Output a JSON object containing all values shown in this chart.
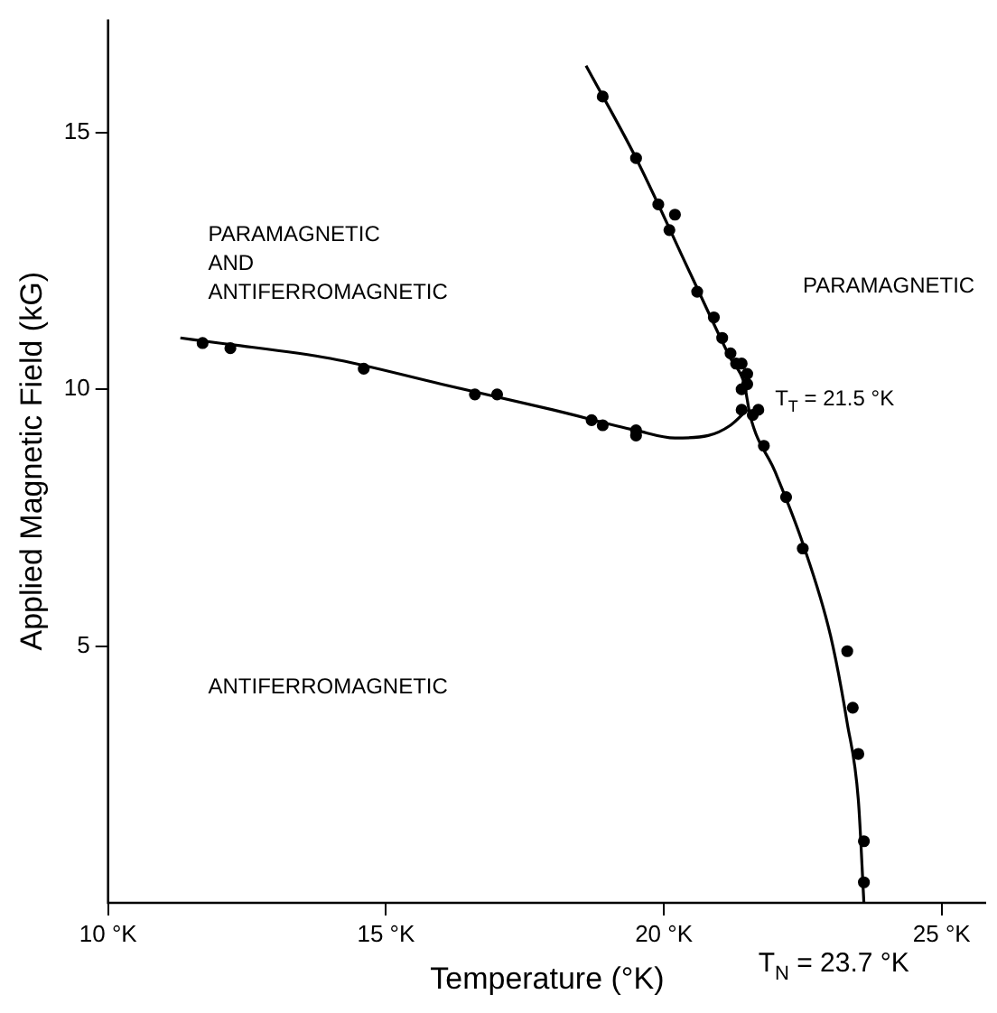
{
  "chart_data": {
    "type": "scatter",
    "xlabel": "Temperature (°K)",
    "ylabel": "Applied Magnetic Field (kG)",
    "xlim": [
      10,
      25.8
    ],
    "ylim": [
      0,
      17.2
    ],
    "xticks": [
      {
        "value": 10,
        "label": "10 °K"
      },
      {
        "value": 15,
        "label": "15 °K"
      },
      {
        "value": 20,
        "label": "20 °K"
      },
      {
        "value": 25,
        "label": "25 °K"
      }
    ],
    "yticks": [
      5,
      10,
      15
    ],
    "grid": false,
    "legend": false,
    "series": [
      {
        "type": "scatter",
        "color": "#000000",
        "marker": "circle",
        "x": [
          11.7,
          12.2,
          14.6,
          16.6,
          17.0,
          18.7,
          18.9,
          19.5,
          19.5,
          18.9,
          19.5,
          19.9,
          20.2,
          20.1,
          20.6,
          20.9,
          21.05,
          21.2,
          21.3,
          21.4,
          21.5,
          21.5,
          21.4,
          21.4,
          21.6,
          21.7,
          21.8,
          22.2,
          22.5,
          23.3,
          23.4,
          23.5,
          23.6,
          23.6
        ],
        "values": [
          10.9,
          10.8,
          10.4,
          9.9,
          9.9,
          9.4,
          9.3,
          9.2,
          9.1,
          15.7,
          14.5,
          13.6,
          13.4,
          13.1,
          11.9,
          11.4,
          11.0,
          10.7,
          10.5,
          10.5,
          10.3,
          10.1,
          10.0,
          9.6,
          9.5,
          9.6,
          8.9,
          7.9,
          6.9,
          4.9,
          3.8,
          2.9,
          1.2,
          0.4
        ]
      },
      {
        "type": "line",
        "color": "#000000",
        "marker": "none",
        "line_style": "solid",
        "x": [
          11.3,
          12,
          14,
          16,
          18,
          19.5,
          20.2,
          20.8,
          21.2,
          21.5
        ],
        "values": [
          11.0,
          10.9,
          10.6,
          10.1,
          9.6,
          9.2,
          9.05,
          9.1,
          9.3,
          9.6
        ]
      },
      {
        "type": "line",
        "color": "#000000",
        "marker": "none",
        "line_style": "solid",
        "x": [
          18.6,
          19.5,
          20.5,
          21.2,
          21.45,
          21.5,
          21.55,
          22,
          22.5,
          23,
          23.3,
          23.5,
          23.6
        ],
        "values": [
          16.3,
          14.5,
          12.2,
          10.6,
          10.1,
          9.8,
          9.5,
          8.4,
          7.0,
          5.2,
          3.5,
          2.0,
          0
        ]
      }
    ],
    "annotations": [
      "PARAMAGNETIC AND ANTIFERROMAGNETIC",
      "PARAMAGNETIC",
      "ANTIFERROMAGNETIC",
      "T$_{T}$ = 21.5 °K",
      "T$_{N}$ = 23.7 °K"
    ]
  }
}
